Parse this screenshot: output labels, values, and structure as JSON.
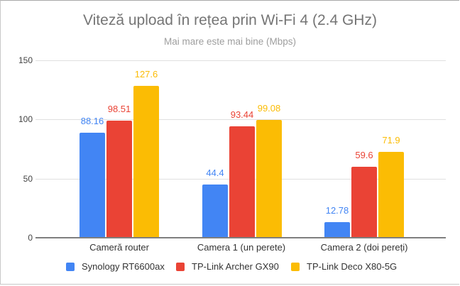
{
  "title": "Viteză upload în rețea prin Wi-Fi 4 (2.4 GHz)",
  "subtitle": "Mai mare este mai bine (Mbps)",
  "colors": {
    "blue": "#4285F4",
    "red": "#EA4335",
    "yellow": "#FBBC04"
  },
  "yaxis": {
    "ticks": [
      "0",
      "50",
      "100",
      "150"
    ]
  },
  "xaxis": {
    "labels": [
      "Cameră router",
      "Camera 1 (un perete)",
      "Camera 2 (doi pereți)"
    ]
  },
  "legend": [
    {
      "label": "Synology RT6600ax",
      "color": "#4285F4"
    },
    {
      "label": "TP-Link Archer GX90",
      "color": "#EA4335"
    },
    {
      "label": "TP-Link Deco X80-5G",
      "color": "#FBBC04"
    }
  ],
  "labels": {
    "g0": [
      "88.16",
      "98.51",
      "127.6"
    ],
    "g1": [
      "44.4",
      "93.44",
      "99.08"
    ],
    "g2": [
      "12.78",
      "59.6",
      "71.9"
    ]
  },
  "chart_data": {
    "type": "bar",
    "title": "Viteză upload în rețea prin Wi-Fi 4 (2.4 GHz)",
    "subtitle": "Mai mare este mai bine (Mbps)",
    "xlabel": "",
    "ylabel": "",
    "ylim": [
      0,
      150
    ],
    "yticks": [
      0,
      50,
      100,
      150
    ],
    "grid": true,
    "legend_position": "bottom",
    "categories": [
      "Cameră router",
      "Camera 1 (un perete)",
      "Camera 2 (doi pereți)"
    ],
    "series": [
      {
        "name": "Synology RT6600ax",
        "color": "#4285F4",
        "values": [
          88.16,
          44.4,
          12.78
        ]
      },
      {
        "name": "TP-Link Archer GX90",
        "color": "#EA4335",
        "values": [
          98.51,
          93.44,
          59.6
        ]
      },
      {
        "name": "TP-Link Deco X80-5G",
        "color": "#FBBC04",
        "values": [
          127.6,
          99.08,
          71.9
        ]
      }
    ]
  }
}
